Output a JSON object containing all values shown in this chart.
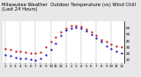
{
  "title": "Milwaukee Weather  Outdoor Temperature (vs) Wind Chill (Last 24 Hours)",
  "bg_color": "#e8e8e8",
  "plot_bg": "#ffffff",
  "grid_color": "#888888",
  "x_hours": [
    1,
    2,
    3,
    4,
    5,
    6,
    7,
    8,
    9,
    10,
    11,
    12,
    13,
    14,
    15,
    16,
    17,
    18,
    19,
    20,
    21,
    22,
    23,
    24
  ],
  "x_labels": [
    "1",
    "2",
    "3",
    "4",
    "5",
    "6",
    "7",
    "8",
    "9",
    "10",
    "11",
    "12",
    "1",
    "2",
    "3",
    "4",
    "5",
    "6",
    "7",
    "8",
    "9",
    "10",
    "11",
    "12"
  ],
  "temp": [
    28,
    26,
    24,
    23,
    22,
    21,
    20,
    22,
    30,
    38,
    46,
    54,
    60,
    63,
    64,
    62,
    58,
    54,
    48,
    42,
    38,
    34,
    32,
    30
  ],
  "windchill": [
    18,
    16,
    14,
    13,
    12,
    11,
    10,
    12,
    18,
    26,
    36,
    48,
    56,
    60,
    61,
    59,
    55,
    50,
    44,
    38,
    32,
    28,
    24,
    20
  ],
  "temp_color": "#cc0000",
  "windchill_color": "#0000cc",
  "ylim": [
    5,
    70
  ],
  "yticks": [
    10,
    20,
    30,
    40,
    50,
    60
  ],
  "ytick_labels": [
    "10",
    "20",
    "30",
    "40",
    "50",
    "60"
  ],
  "vgrid_positions": [
    1,
    4,
    7,
    10,
    13,
    16,
    19,
    22
  ],
  "title_fontsize": 3.8,
  "tick_fontsize": 3.0,
  "dot_size": 1.2,
  "line_width": 0.6
}
